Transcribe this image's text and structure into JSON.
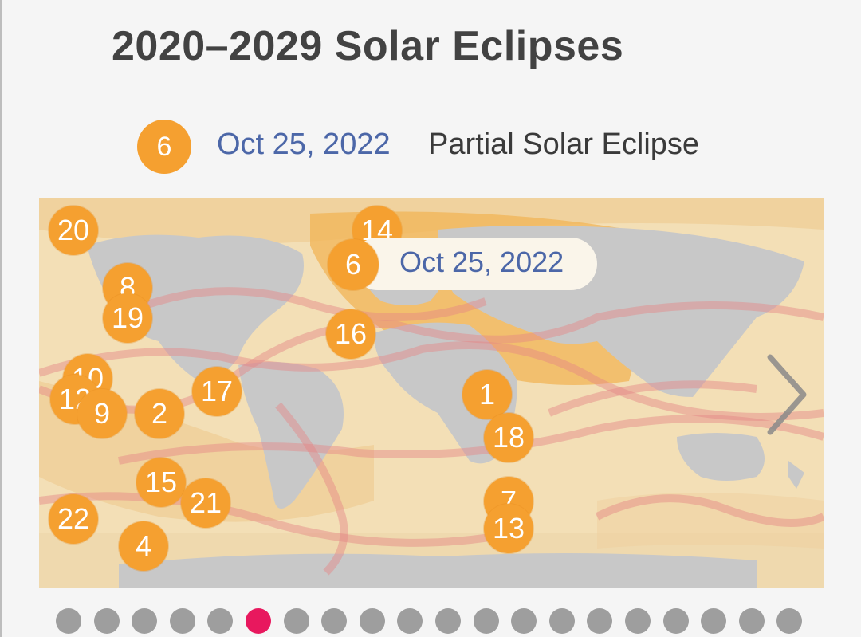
{
  "title": "2020–2029 Solar Eclipses",
  "selected": {
    "number": "6",
    "date": "Oct 25, 2022",
    "type": "Partial Solar Eclipse"
  },
  "tooltip": {
    "number": "6",
    "date": "Oct 25, 2022"
  },
  "colors": {
    "badge": "#f5a030",
    "link_date": "#4c67a8",
    "active_dot": "#e8185e",
    "inactive_dot": "#9e9e9e",
    "land": "#c8c8c8",
    "ocean": "#f3dfb6"
  },
  "markers": [
    {
      "id": "20",
      "label": "20"
    },
    {
      "id": "14",
      "label": "14"
    },
    {
      "id": "8",
      "label": "8"
    },
    {
      "id": "19",
      "label": "19"
    },
    {
      "id": "16",
      "label": "16"
    },
    {
      "id": "10",
      "label": "10"
    },
    {
      "id": "12",
      "label": "12"
    },
    {
      "id": "9",
      "label": "9"
    },
    {
      "id": "2",
      "label": "2"
    },
    {
      "id": "17",
      "label": "17"
    },
    {
      "id": "1",
      "label": "1"
    },
    {
      "id": "18",
      "label": "18"
    },
    {
      "id": "15",
      "label": "15"
    },
    {
      "id": "21",
      "label": "21"
    },
    {
      "id": "22",
      "label": "22"
    },
    {
      "id": "4",
      "label": "4"
    },
    {
      "id": "7",
      "label": "7"
    },
    {
      "id": "13",
      "label": "13"
    }
  ],
  "navigation": {
    "next_icon": "chevron-right-icon",
    "page_count": 20,
    "active_page": 6
  }
}
